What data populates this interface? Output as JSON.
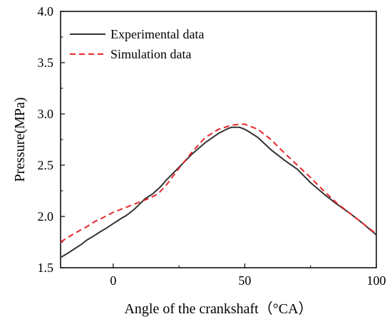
{
  "chart_data": {
    "type": "line",
    "xlabel": "Angle of the crankshaft（°CA）",
    "ylabel": "Pressure(MPa)",
    "xlim": [
      -20,
      100
    ],
    "ylim": [
      1.5,
      4.0
    ],
    "xticks": [
      0,
      50,
      100
    ],
    "yticks": [
      1.5,
      2.0,
      2.5,
      3.0,
      3.5,
      4.0
    ],
    "xtick_labels": [
      "0",
      "50",
      "100"
    ],
    "ytick_labels": [
      "1.5",
      "2.0",
      "2.5",
      "3.0",
      "3.5",
      "4.0"
    ],
    "grid": false,
    "legend_position": "top-left",
    "series": [
      {
        "name": "Experimental data",
        "style": "solid",
        "color": "#333333",
        "x": [
          -20,
          -18,
          -15,
          -12,
          -10,
          -8,
          -5,
          -3,
          0,
          3,
          5,
          8,
          10,
          12,
          15,
          18,
          20,
          25,
          30,
          35,
          40,
          43,
          45,
          47,
          48,
          50,
          52,
          55,
          60,
          65,
          70,
          75,
          80,
          85,
          90,
          95,
          100
        ],
        "y": [
          1.6,
          1.63,
          1.68,
          1.73,
          1.77,
          1.8,
          1.85,
          1.88,
          1.93,
          1.98,
          2.01,
          2.07,
          2.12,
          2.17,
          2.22,
          2.29,
          2.35,
          2.48,
          2.61,
          2.72,
          2.81,
          2.85,
          2.87,
          2.87,
          2.87,
          2.85,
          2.82,
          2.77,
          2.65,
          2.55,
          2.46,
          2.33,
          2.22,
          2.12,
          2.03,
          1.93,
          1.82
        ]
      },
      {
        "name": "Simulation data",
        "style": "dashed",
        "color": "#e8262b",
        "x": [
          -20,
          -17,
          -13,
          -10,
          -7,
          -3,
          0,
          3,
          6,
          10,
          14,
          17,
          20,
          25,
          30,
          35,
          40,
          45,
          48,
          50,
          55,
          60,
          65,
          70,
          75,
          80,
          85,
          90,
          95,
          100
        ],
        "y": [
          1.75,
          1.8,
          1.86,
          1.9,
          1.95,
          2.0,
          2.04,
          2.07,
          2.1,
          2.14,
          2.18,
          2.22,
          2.3,
          2.47,
          2.63,
          2.77,
          2.85,
          2.89,
          2.9,
          2.9,
          2.85,
          2.75,
          2.62,
          2.5,
          2.38,
          2.25,
          2.13,
          2.03,
          1.93,
          1.83
        ]
      }
    ]
  }
}
